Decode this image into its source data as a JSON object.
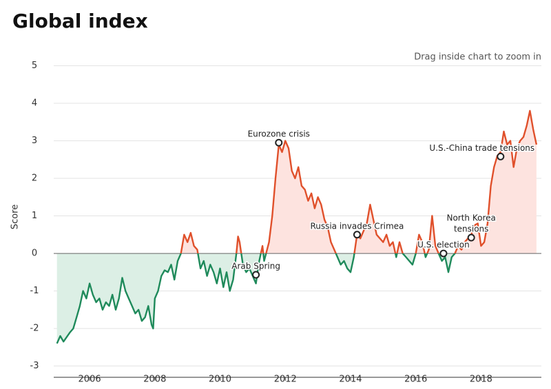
{
  "chart_data": {
    "type": "line",
    "title": "Global index",
    "subtitle": "Drag inside chart to zoom in",
    "ylabel": "Score",
    "xlim": [
      2004.9,
      2019.85
    ],
    "xticks": [
      2006,
      2008,
      2010,
      2012,
      2014,
      2016,
      2018
    ],
    "ylim": [
      -3.3,
      5.1
    ],
    "yticks": [
      -3,
      -2,
      -1,
      0,
      1,
      2,
      3,
      4,
      5
    ],
    "grid": true,
    "colors": {
      "above": "#e0502b",
      "below": "#1f8a5b",
      "above_fill": "#fde3df",
      "below_fill": "#dcefe5"
    },
    "x": [
      2005.0,
      2005.1,
      2005.2,
      2005.4,
      2005.5,
      2005.6,
      2005.7,
      2005.8,
      2005.9,
      2006.0,
      2006.1,
      2006.2,
      2006.3,
      2006.4,
      2006.5,
      2006.6,
      2006.7,
      2006.8,
      2006.9,
      2007.0,
      2007.1,
      2007.2,
      2007.3,
      2007.4,
      2007.5,
      2007.6,
      2007.7,
      2007.8,
      2007.9,
      2007.95,
      2008.0,
      2008.1,
      2008.2,
      2008.3,
      2008.4,
      2008.5,
      2008.6,
      2008.7,
      2008.8,
      2008.9,
      2009.0,
      2009.1,
      2009.2,
      2009.3,
      2009.4,
      2009.5,
      2009.6,
      2009.7,
      2009.8,
      2009.9,
      2010.0,
      2010.1,
      2010.2,
      2010.3,
      2010.4,
      2010.5,
      2010.55,
      2010.6,
      2010.7,
      2010.8,
      2010.9,
      2011.0,
      2011.1,
      2011.2,
      2011.3,
      2011.35,
      2011.5,
      2011.6,
      2011.7,
      2011.8,
      2011.9,
      2012.0,
      2012.1,
      2012.2,
      2012.3,
      2012.4,
      2012.5,
      2012.6,
      2012.7,
      2012.8,
      2012.9,
      2013.0,
      2013.1,
      2013.2,
      2013.3,
      2013.4,
      2013.5,
      2013.6,
      2013.7,
      2013.8,
      2013.9,
      2014.0,
      2014.1,
      2014.2,
      2014.3,
      2014.4,
      2014.5,
      2014.6,
      2014.7,
      2014.8,
      2014.9,
      2015.0,
      2015.1,
      2015.2,
      2015.3,
      2015.4,
      2015.5,
      2015.6,
      2015.7,
      2015.8,
      2015.9,
      2016.0,
      2016.1,
      2016.2,
      2016.3,
      2016.4,
      2016.5,
      2016.6,
      2016.7,
      2016.8,
      2016.9,
      2017.0,
      2017.1,
      2017.2,
      2017.3,
      2017.4,
      2017.5,
      2017.6,
      2017.7,
      2017.8,
      2017.9,
      2018.0,
      2018.1,
      2018.2,
      2018.3,
      2018.4,
      2018.5,
      2018.6,
      2018.7,
      2018.8,
      2018.9,
      2019.0,
      2019.1,
      2019.2,
      2019.3,
      2019.4,
      2019.5,
      2019.6,
      2019.7
    ],
    "values": [
      -2.4,
      -2.2,
      -2.35,
      -2.1,
      -2.0,
      -1.7,
      -1.4,
      -1.0,
      -1.2,
      -0.8,
      -1.1,
      -1.3,
      -1.2,
      -1.5,
      -1.3,
      -1.4,
      -1.1,
      -1.5,
      -1.2,
      -0.65,
      -1.0,
      -1.2,
      -1.4,
      -1.6,
      -1.5,
      -1.8,
      -1.7,
      -1.4,
      -1.9,
      -2.0,
      -1.2,
      -1.0,
      -0.6,
      -0.45,
      -0.5,
      -0.3,
      -0.7,
      -0.2,
      0.0,
      0.5,
      0.3,
      0.55,
      0.2,
      0.1,
      -0.4,
      -0.2,
      -0.6,
      -0.3,
      -0.5,
      -0.8,
      -0.4,
      -0.9,
      -0.5,
      -1.0,
      -0.7,
      0.0,
      0.45,
      0.3,
      -0.3,
      -0.5,
      -0.4,
      -0.6,
      -0.8,
      -0.2,
      0.2,
      -0.2,
      0.3,
      1.0,
      2.0,
      2.9,
      2.7,
      3.0,
      2.8,
      2.2,
      2.0,
      2.3,
      1.8,
      1.7,
      1.4,
      1.6,
      1.2,
      1.5,
      1.3,
      0.9,
      0.7,
      0.3,
      0.1,
      -0.1,
      -0.3,
      -0.2,
      -0.4,
      -0.5,
      -0.1,
      0.5,
      0.4,
      0.6,
      0.8,
      1.3,
      0.9,
      0.5,
      0.4,
      0.3,
      0.5,
      0.2,
      0.3,
      -0.1,
      0.3,
      0.0,
      -0.1,
      -0.2,
      -0.3,
      0.0,
      0.5,
      0.3,
      -0.1,
      0.1,
      1.0,
      0.2,
      0.0,
      -0.2,
      -0.1,
      -0.5,
      -0.1,
      0.0,
      0.2,
      0.1,
      0.3,
      0.4,
      0.5,
      0.75,
      0.8,
      0.2,
      0.3,
      0.8,
      1.8,
      2.3,
      2.6,
      2.7,
      3.25,
      2.9,
      3.0,
      2.3,
      2.8,
      3.0,
      3.1,
      3.4,
      3.8,
      3.3,
      2.9
    ],
    "annotations": [
      {
        "label": [
          "Eurozone crisis"
        ],
        "x": 2011.8,
        "y": 2.95
      },
      {
        "label": [
          "Arab Spring"
        ],
        "x": 2011.1,
        "y": -0.57
      },
      {
        "label": [
          "Russia invades Crimea"
        ],
        "x": 2014.2,
        "y": 0.5
      },
      {
        "label": [
          "U.S. election"
        ],
        "x": 2016.85,
        "y": 0.0
      },
      {
        "label": [
          "North Korea",
          "tensions"
        ],
        "x": 2017.7,
        "y": 0.42
      },
      {
        "label": [
          "U.S.-China trade tensions"
        ],
        "x": 2018.6,
        "y": 2.58
      }
    ]
  }
}
